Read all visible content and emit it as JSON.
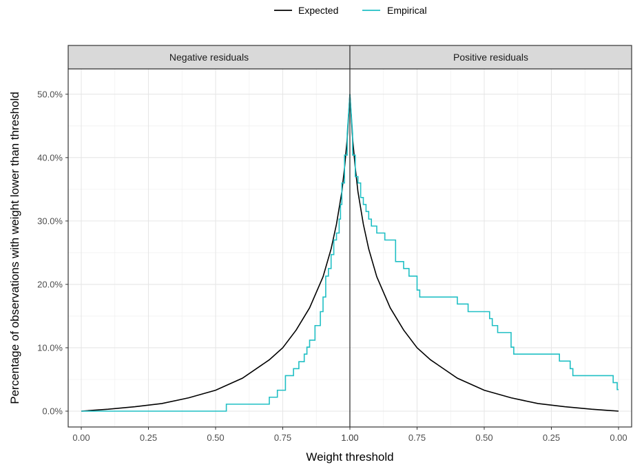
{
  "chart_data": {
    "type": "line",
    "facets": [
      {
        "label": "Negative residuals"
      },
      {
        "label": "Positive residuals"
      }
    ],
    "xlabel": "Weight threshold",
    "ylabel": "Percentage of observations with weight lower than threshold",
    "legend": {
      "placement": "top",
      "entries": [
        {
          "name": "Expected",
          "color": "#000000"
        },
        {
          "name": "Empirical",
          "color": "#1fbfc4"
        }
      ]
    },
    "xlim": [
      0,
      1
    ],
    "ylim": [
      -2.5,
      54
    ],
    "x_ticks": [
      0,
      0.25,
      0.5,
      0.75,
      1
    ],
    "x_tick_labels": [
      "0.00",
      "0.25",
      "0.50",
      "0.75",
      "1.00"
    ],
    "y_ticks": [
      0,
      10,
      20,
      30,
      40,
      50
    ],
    "y_tick_labels": [
      "0.0%",
      "10.0%",
      "20.0%",
      "30.0%",
      "40.0%",
      "50.0%"
    ],
    "grid": true,
    "series": [
      {
        "name": "Expected",
        "color": "#000000",
        "negative": {
          "x": [
            0,
            0.1,
            0.2,
            0.3,
            0.4,
            0.5,
            0.6,
            0.7,
            0.75,
            0.8,
            0.85,
            0.9,
            0.93,
            0.95,
            0.97,
            0.98,
            0.99,
            1.0
          ],
          "y": [
            0,
            0.3,
            0.7,
            1.2,
            2.1,
            3.3,
            5.2,
            8.1,
            10.0,
            12.8,
            16.3,
            21.2,
            25.6,
            29.5,
            34.6,
            38.4,
            43.0,
            50.0
          ]
        },
        "positive": {
          "x": [
            1.0,
            0.99,
            0.98,
            0.97,
            0.95,
            0.93,
            0.9,
            0.85,
            0.8,
            0.75,
            0.7,
            0.6,
            0.5,
            0.4,
            0.3,
            0.2,
            0.1,
            0
          ],
          "y": [
            50.0,
            43.0,
            38.4,
            34.6,
            29.5,
            25.6,
            21.2,
            16.3,
            12.8,
            10.0,
            8.1,
            5.2,
            3.3,
            2.1,
            1.2,
            0.7,
            0.3,
            0
          ]
        }
      },
      {
        "name": "Empirical",
        "color": "#1fbfc4",
        "negative": {
          "x": [
            0,
            0.54,
            0.54,
            0.7,
            0.7,
            0.73,
            0.73,
            0.76,
            0.76,
            0.79,
            0.79,
            0.81,
            0.81,
            0.83,
            0.83,
            0.84,
            0.84,
            0.85,
            0.85,
            0.87,
            0.87,
            0.89,
            0.89,
            0.9,
            0.9,
            0.91,
            0.91,
            0.92,
            0.92,
            0.93,
            0.93,
            0.94,
            0.94,
            0.95,
            0.95,
            0.96,
            0.96,
            0.965,
            0.965,
            0.97,
            0.97,
            0.98,
            0.98,
            0.99,
            0.99,
            1.0
          ],
          "y": [
            0,
            0,
            1.1,
            1.1,
            2.2,
            2.2,
            3.3,
            3.3,
            5.6,
            5.6,
            6.7,
            6.7,
            7.8,
            7.8,
            9.0,
            9.0,
            10.1,
            10.1,
            11.2,
            11.2,
            13.5,
            13.5,
            15.7,
            15.7,
            18.0,
            18.0,
            21.3,
            21.3,
            22.5,
            22.5,
            24.7,
            24.7,
            27.0,
            27.0,
            28.1,
            28.1,
            30.3,
            30.3,
            32.6,
            32.6,
            36.0,
            36.0,
            40.4,
            40.4,
            43.8,
            50.0
          ]
        },
        "positive": {
          "x": [
            1.0,
            0.99,
            0.99,
            0.98,
            0.98,
            0.97,
            0.97,
            0.96,
            0.96,
            0.95,
            0.95,
            0.94,
            0.94,
            0.93,
            0.93,
            0.92,
            0.92,
            0.9,
            0.9,
            0.87,
            0.87,
            0.83,
            0.83,
            0.8,
            0.8,
            0.78,
            0.78,
            0.75,
            0.75,
            0.74,
            0.74,
            0.6,
            0.6,
            0.56,
            0.56,
            0.48,
            0.48,
            0.47,
            0.47,
            0.45,
            0.45,
            0.4,
            0.4,
            0.39,
            0.39,
            0.37,
            0.37,
            0.22,
            0.22,
            0.18,
            0.18,
            0.17,
            0.17,
            0.02,
            0.02,
            0.005,
            0.005,
            0.0
          ],
          "y": [
            50.0,
            43.8,
            40.4,
            40.4,
            37.0,
            37.0,
            36.0,
            36.0,
            33.7,
            33.7,
            32.6,
            32.6,
            31.5,
            31.5,
            30.3,
            30.3,
            29.2,
            29.2,
            28.1,
            28.1,
            27.0,
            27.0,
            23.6,
            23.6,
            22.5,
            22.5,
            21.3,
            21.3,
            19.1,
            19.1,
            18.0,
            18.0,
            16.9,
            16.9,
            15.7,
            15.7,
            14.6,
            14.6,
            13.5,
            13.5,
            12.4,
            12.4,
            10.1,
            10.1,
            9.0,
            9.0,
            9.0,
            9.0,
            7.9,
            7.9,
            6.7,
            6.7,
            5.6,
            5.6,
            4.5,
            4.5,
            3.4,
            3.4
          ]
        }
      }
    ]
  }
}
